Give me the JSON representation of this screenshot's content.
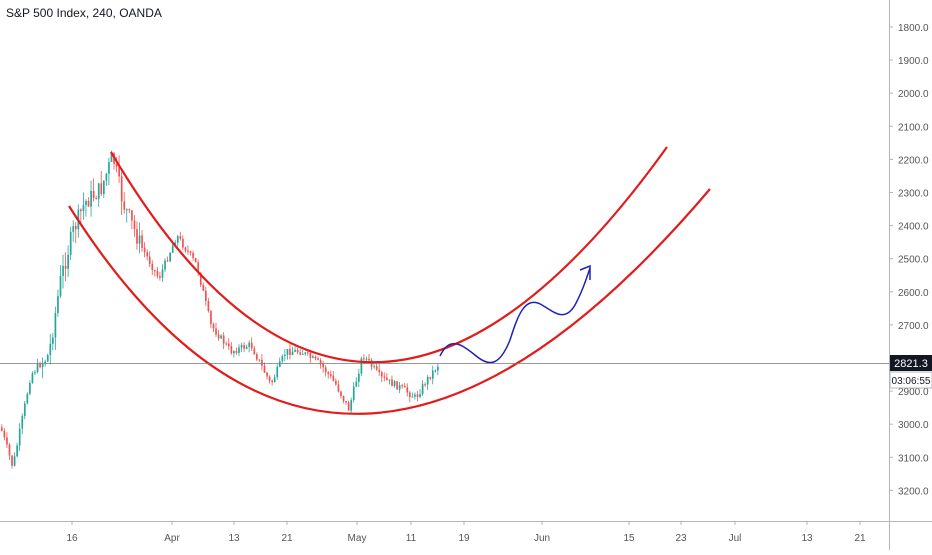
{
  "header": {
    "symbol_title": "S&P 500 Index, 240, OANDA"
  },
  "price_axis": {
    "ticks": [
      "1800.0",
      "1900.0",
      "2000.0",
      "2100.0",
      "2200.0",
      "2300.0",
      "2400.0",
      "2500.0",
      "2600.0",
      "2700.0",
      "2800.0",
      "2900.0",
      "3000.0",
      "3100.0",
      "3200.0"
    ],
    "current_price": "2821.3",
    "countdown": "03:06:55",
    "inverted": true
  },
  "time_axis": {
    "ticks": [
      "16",
      "Apr",
      "13",
      "21",
      "May",
      "11",
      "19",
      "Jun",
      "15",
      "23",
      "Jul",
      "13",
      "21"
    ]
  },
  "colors": {
    "up": "#26a69a",
    "down": "#ef5350",
    "bars": "#777777",
    "curve": "#e31b1b",
    "projection": "#1f23b3",
    "price_line": "#777777",
    "price_label_bg": "#131722",
    "grid": "#f0f3fa"
  },
  "chart_data": {
    "type": "candlestick",
    "title": "S&P 500 Index, 240, OANDA",
    "y_axis": {
      "range": [
        1700,
        3300
      ],
      "inverted": true,
      "unit": "index points"
    },
    "x_axis": {
      "tick_labels": [
        "16",
        "Apr",
        "13",
        "21",
        "May",
        "11",
        "19",
        "Jun",
        "15",
        "23",
        "Jul",
        "13",
        "21"
      ]
    },
    "last_price": 2821.3,
    "price_path_approx": [
      {
        "x": "early Mar",
        "close": 3130
      },
      {
        "x": "16",
        "close": 2800
      },
      {
        "x": "~20 Mar",
        "close": 2250
      },
      {
        "x": "~23 Mar",
        "close": 2190
      },
      {
        "x": "~26 Mar",
        "close": 2400
      },
      {
        "x": "Apr",
        "close": 2550
      },
      {
        "x": "~8 Apr",
        "close": 2470
      },
      {
        "x": "13",
        "close": 2760
      },
      {
        "x": "~17 Apr",
        "close": 2880
      },
      {
        "x": "21",
        "close": 2740
      },
      {
        "x": "~28 Apr",
        "close": 2940
      },
      {
        "x": "May",
        "close": 2790
      },
      {
        "x": "~8 May",
        "close": 2920
      },
      {
        "x": "~13 May",
        "close": 2880
      },
      {
        "x": "~15 May",
        "close": 2821.3
      }
    ],
    "annotations": [
      {
        "type": "curve",
        "role": "upper arc",
        "color": "#e31b1b"
      },
      {
        "type": "curve",
        "role": "lower arc",
        "color": "#e31b1b"
      },
      {
        "type": "arrow",
        "role": "projected path",
        "color": "#1f23b3"
      }
    ]
  }
}
